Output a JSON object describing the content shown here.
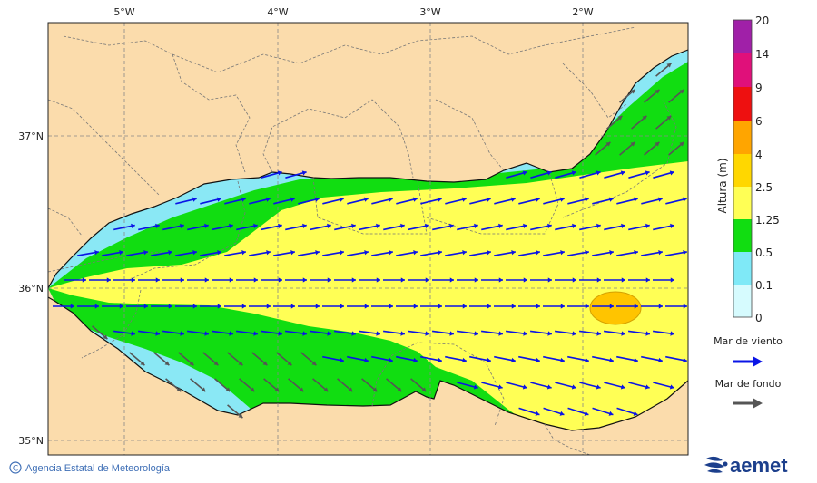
{
  "map": {
    "lon_labels": [
      "5°W",
      "4°W",
      "3°W",
      "2°W"
    ],
    "lat_labels": [
      "37°N",
      "36°N",
      "35°N"
    ],
    "colorbar": {
      "title": "Altura (m)",
      "levels": [
        "20",
        "14",
        "9",
        "6",
        "4",
        "2.5",
        "1.25",
        "0.5",
        "0.1",
        "0"
      ],
      "colors": [
        "#a020a8",
        "#e0107a",
        "#ee1010",
        "#ffa500",
        "#ffd700",
        "#ffff55",
        "#11dd11",
        "#7fe9f7",
        "#d6fbfe"
      ]
    },
    "legend": {
      "wind_sea_label": "Mar de viento",
      "wind_sea_color": "#0a14e6",
      "swell_label": "Mar de fondo",
      "swell_color": "#555555"
    },
    "credit": "Agencia Estatal de Meteorología",
    "brand": "aemet",
    "colors": {
      "land": "#fbdcac",
      "sea_low": "#8ae8f5",
      "sea_mid": "#11dd11",
      "sea_high": "#ffff55",
      "sea_peak": "#ffc400"
    }
  }
}
